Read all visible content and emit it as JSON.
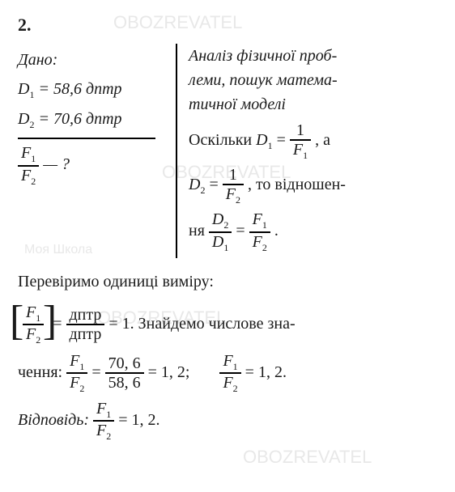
{
  "watermarks": {
    "a": "OBOZREVATEL",
    "b": "OBOZREVATEL",
    "c": "OBOZREVATEL",
    "d": "OBOZREVATEL",
    "e": "Моя Школа"
  },
  "problem": {
    "number": "2.",
    "given_label": "Дано:",
    "D1_sym": "D",
    "D1_sub": "1",
    "D1_eq": " = 58,6 дптр",
    "D2_sym": "D",
    "D2_sub": "2",
    "D2_eq": " = 70,6 дптр",
    "ask_F1": "F",
    "ask_F1_sub": "1",
    "ask_F2": "F",
    "ask_F2_sub": "2",
    "ask_tail": " — ?",
    "analysis_l1": "Аналіз фізичної проб-",
    "analysis_l2": "леми, пошук матема-",
    "analysis_l3": "тичної моделі",
    "since": "Оскільки  ",
    "D1eq_lhs": "D",
    "D1eq_lhs_sub": "1",
    "eq": " = ",
    "one": "1",
    "F1": "F",
    "F1_sub": "1",
    "comma_a": ",   а",
    "D2eq_lhs": "D",
    "D2eq_lhs_sub": "2",
    "F2": "F",
    "F2_sub": "2",
    "then": ",   то  віднoшен-",
    "nya": "ня  ",
    "ratio_Dn": "D",
    "ratio_Dn_sub": "2",
    "ratio_Dd": "D",
    "ratio_Dd_sub": "1",
    "ratio_Fn": "F",
    "ratio_Fn_sub": "1",
    "ratio_Fd": "F",
    "ratio_Fd_sub": "2",
    "dot": ".",
    "check_units": "Перевіримо одиниці виміру:",
    "unit_top": "дптр",
    "unit_bot": "дптр",
    "eq1": " = 1.  Знайдемо числове зна-",
    "chennya": "чення:  ",
    "val_top": "70, 6",
    "val_bot": "58, 6",
    "eq12a": " = 1, 2;",
    "eq12b": " = 1, 2.",
    "answer_label": "Відповідь:  ",
    "answer_val": " = 1, 2."
  }
}
